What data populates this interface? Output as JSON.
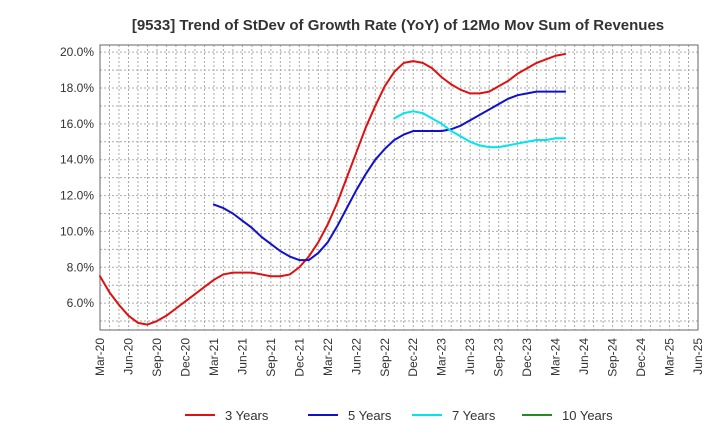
{
  "chart_data": {
    "type": "line",
    "title": "[9533]  Trend of StDev of Growth Rate (YoY) of 12Mo Mov Sum of Revenues",
    "xlabel": "",
    "ylabel": "",
    "x_tick_labels": [
      "Mar-20",
      "Jun-20",
      "Sep-20",
      "Dec-20",
      "Mar-21",
      "Jun-21",
      "Sep-21",
      "Dec-21",
      "Mar-22",
      "Jun-22",
      "Sep-22",
      "Dec-22",
      "Mar-23",
      "Jun-23",
      "Sep-23",
      "Dec-23",
      "Mar-24",
      "Jun-24",
      "Sep-24",
      "Dec-24",
      "Mar-25",
      "Jun-25"
    ],
    "y_ticks": [
      6.0,
      8.0,
      10.0,
      12.0,
      14.0,
      16.0,
      18.0,
      20.0
    ],
    "y_tick_labels": [
      "6.0%",
      "8.0%",
      "10.0%",
      "12.0%",
      "14.0%",
      "16.0%",
      "18.0%",
      "20.0%"
    ],
    "ylim": [
      4.5,
      20.4
    ],
    "grid": true,
    "legend_position": "bottom",
    "series": [
      {
        "name": "3 Years",
        "color": "#dd1111",
        "values": [
          7.5,
          6.6,
          5.9,
          5.3,
          4.9,
          4.8,
          5.0,
          5.3,
          5.7,
          6.1,
          6.5,
          6.9,
          7.3,
          7.6,
          7.7,
          7.7,
          7.7,
          7.6,
          7.5,
          7.5,
          7.6,
          8.0,
          8.6,
          9.4,
          10.4,
          11.6,
          13.0,
          14.4,
          15.8,
          17.0,
          18.1,
          18.9,
          19.4,
          19.5,
          19.4,
          19.1,
          18.6,
          18.2,
          17.9,
          17.7,
          17.7,
          17.8,
          18.1,
          18.4,
          18.8,
          19.1,
          19.4,
          19.6,
          19.8,
          19.9,
          null
        ]
      },
      {
        "name": "5 Years",
        "color": "#1111cc",
        "values": [
          null,
          null,
          null,
          null,
          null,
          null,
          null,
          null,
          null,
          null,
          null,
          null,
          11.5,
          11.3,
          11.0,
          10.6,
          10.2,
          9.7,
          9.3,
          8.9,
          8.6,
          8.4,
          8.4,
          8.8,
          9.4,
          10.3,
          11.3,
          12.3,
          13.2,
          14.0,
          14.6,
          15.1,
          15.4,
          15.6,
          15.6,
          15.6,
          15.6,
          15.7,
          15.9,
          16.2,
          16.5,
          16.8,
          17.1,
          17.4,
          17.6,
          17.7,
          17.8,
          17.8,
          17.8,
          17.8,
          null
        ]
      },
      {
        "name": "7 Years",
        "color": "#00e5ee",
        "values": [
          null,
          null,
          null,
          null,
          null,
          null,
          null,
          null,
          null,
          null,
          null,
          null,
          null,
          null,
          null,
          null,
          null,
          null,
          null,
          null,
          null,
          null,
          null,
          null,
          null,
          null,
          null,
          null,
          null,
          null,
          null,
          16.3,
          16.6,
          16.7,
          16.6,
          16.3,
          16.0,
          15.6,
          15.3,
          15.0,
          14.8,
          14.7,
          14.7,
          14.8,
          14.9,
          15.0,
          15.1,
          15.1,
          15.2,
          15.2,
          null
        ]
      },
      {
        "name": "10 Years",
        "color": "#228b22",
        "values": []
      }
    ]
  }
}
